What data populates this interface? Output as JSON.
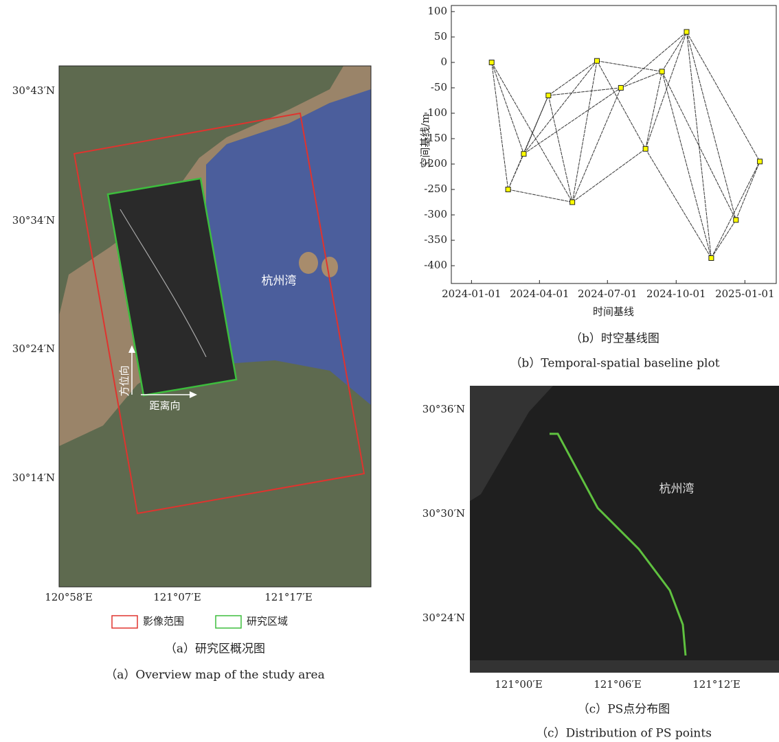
{
  "panel_a": {
    "lat_labels": [
      "30°43′N",
      "30°34′N",
      "30°24′N",
      "30°14′N"
    ],
    "lon_labels": [
      "120°58′E",
      "121°07′E",
      "121°17′E"
    ],
    "place_label": "杭州湾",
    "azimuth_label": "方位向",
    "range_label": "距离向",
    "legend": [
      "影像范围",
      "研究区域"
    ],
    "caption_zh": "（a）研究区概况图",
    "caption_en": "（a）Overview map of the study area"
  },
  "panel_c": {
    "lat_labels": [
      "30°36′N",
      "30°30′N",
      "30°24′N"
    ],
    "lon_labels": [
      "121°00′E",
      "121°06′E",
      "121°12′E"
    ],
    "place_label": "杭州湾",
    "caption_zh": "（c）PS点分布图",
    "caption_en": "（c）Distribution of PS points"
  },
  "chart_data": {
    "type": "network",
    "x_label": "时间基线",
    "y_label": "空间基线/m",
    "caption_zh": "（b）时空基线图",
    "caption_en": "（b）Temporal-spatial baseline plot",
    "x": [
      "2024-01-28",
      "2024-02-19",
      "2024-03-11",
      "2024-04-13",
      "2024-05-15",
      "2024-06-17",
      "2024-07-19",
      "2024-08-21",
      "2024-09-12",
      "2024-10-15",
      "2024-11-17",
      "2024-12-20",
      "2025-01-21"
    ],
    "values": [
      0,
      -250,
      -180,
      -65,
      -275,
      3,
      -50,
      -170,
      -18,
      60,
      -385,
      -310,
      -195
    ],
    "edges": [
      [
        0,
        1
      ],
      [
        0,
        2
      ],
      [
        0,
        4
      ],
      [
        1,
        2
      ],
      [
        1,
        3
      ],
      [
        1,
        4
      ],
      [
        2,
        3
      ],
      [
        2,
        5
      ],
      [
        2,
        6
      ],
      [
        3,
        4
      ],
      [
        3,
        5
      ],
      [
        3,
        6
      ],
      [
        4,
        5
      ],
      [
        4,
        6
      ],
      [
        4,
        7
      ],
      [
        5,
        7
      ],
      [
        5,
        8
      ],
      [
        6,
        8
      ],
      [
        6,
        9
      ],
      [
        7,
        8
      ],
      [
        7,
        9
      ],
      [
        7,
        10
      ],
      [
        8,
        9
      ],
      [
        8,
        10
      ],
      [
        8,
        11
      ],
      [
        9,
        10
      ],
      [
        9,
        11
      ],
      [
        9,
        12
      ],
      [
        10,
        11
      ],
      [
        10,
        12
      ],
      [
        11,
        12
      ]
    ],
    "point_color": "#ffff00",
    "edge_color": "#333333",
    "xlim": [
      "2023-12-05",
      "2025-02-12"
    ],
    "xticks": [
      "2024-01-01",
      "2024-04-01",
      "2024-07-01",
      "2024-10-01",
      "2025-01-01"
    ],
    "ylim": [
      -435,
      112
    ],
    "yticks": [
      100,
      50,
      0,
      -50,
      -100,
      -150,
      -200,
      -250,
      -300,
      -350,
      -400
    ]
  }
}
